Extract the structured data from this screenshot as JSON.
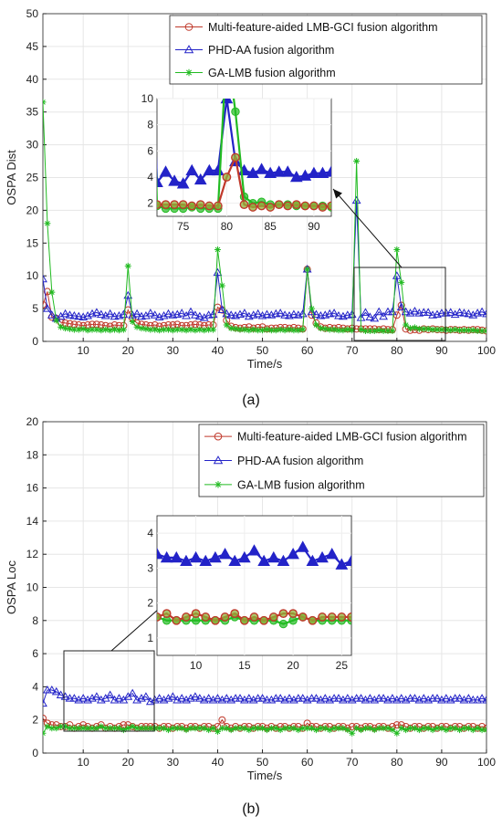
{
  "chart_data": [
    {
      "type": "line",
      "panel_label": "(a)",
      "xlabel": "Time/s",
      "ylabel": "OSPA Dist",
      "xlim": [
        1,
        100
      ],
      "ylim": [
        0,
        50
      ],
      "xticks": [
        10,
        20,
        30,
        40,
        50,
        60,
        70,
        80,
        90,
        100
      ],
      "yticks": [
        0,
        5,
        10,
        15,
        20,
        25,
        30,
        35,
        40,
        45,
        50
      ],
      "grid": true,
      "legend_position": "top-right",
      "x": [
        1,
        2,
        3,
        4,
        5,
        6,
        7,
        8,
        9,
        10,
        11,
        12,
        13,
        14,
        15,
        16,
        17,
        18,
        19,
        20,
        21,
        22,
        23,
        24,
        25,
        26,
        27,
        28,
        29,
        30,
        31,
        32,
        33,
        34,
        35,
        36,
        37,
        38,
        39,
        40,
        41,
        42,
        43,
        44,
        45,
        46,
        47,
        48,
        49,
        50,
        51,
        52,
        53,
        54,
        55,
        56,
        57,
        58,
        59,
        60,
        61,
        62,
        63,
        64,
        65,
        66,
        67,
        68,
        69,
        70,
        71,
        72,
        73,
        74,
        75,
        76,
        77,
        78,
        79,
        80,
        81,
        82,
        83,
        84,
        85,
        86,
        87,
        88,
        89,
        90,
        91,
        92,
        93,
        94,
        95,
        96,
        97,
        98,
        99,
        100
      ],
      "series": [
        {
          "name": "Multi-feature-aided LMB-GCI fusion algorithm",
          "color": "#c0392b",
          "marker": "circle",
          "values": [
            5.6,
            7.6,
            3.7,
            3.5,
            2.9,
            2.8,
            2.7,
            2.6,
            2.5,
            2.4,
            2.5,
            2.6,
            2.6,
            2.5,
            2.4,
            2.3,
            2.5,
            2.4,
            2.4,
            4.8,
            3.5,
            2.8,
            2.6,
            2.5,
            2.4,
            2.5,
            2.3,
            2.4,
            2.5,
            2.5,
            2.6,
            2.4,
            2.4,
            2.5,
            2.6,
            2.5,
            2.4,
            2.5,
            2.5,
            5.2,
            4.8,
            3.2,
            2.3,
            2.1,
            2.0,
            2.1,
            2.2,
            2.0,
            2.1,
            2.2,
            1.9,
            2.0,
            2.0,
            2.1,
            2.1,
            2.0,
            2.1,
            2.0,
            1.9,
            11.0,
            4.0,
            2.8,
            2.2,
            2.0,
            2.1,
            2.0,
            2.1,
            2.0,
            1.9,
            2.0,
            1.9,
            1.9,
            1.9,
            1.9,
            1.9,
            1.8,
            1.9,
            1.8,
            1.8,
            4.0,
            5.5,
            1.9,
            1.7,
            1.8,
            1.7,
            1.9,
            1.8,
            1.9,
            1.8,
            1.8,
            1.7,
            1.8,
            1.8,
            1.7,
            1.8,
            1.7,
            1.8,
            1.8,
            1.7,
            1.6
          ]
        },
        {
          "name": "PHD-AA fusion algorithm",
          "color": "#2323c8",
          "marker": "triangle",
          "values": [
            9.5,
            5.0,
            4.0,
            3.5,
            3.8,
            4.2,
            4.0,
            3.9,
            3.8,
            3.7,
            3.9,
            4.2,
            4.4,
            4.1,
            3.9,
            4.2,
            3.8,
            3.9,
            4.1,
            7.0,
            4.0,
            4.2,
            3.8,
            3.9,
            4.3,
            4.0,
            3.7,
            3.9,
            4.2,
            4.0,
            4.1,
            4.3,
            3.9,
            4.5,
            4.0,
            3.8,
            3.6,
            4.0,
            4.1,
            10.5,
            4.8,
            4.2,
            4.0,
            3.9,
            4.1,
            4.3,
            3.8,
            4.0,
            4.2,
            3.9,
            4.1,
            4.0,
            4.2,
            4.3,
            4.0,
            3.9,
            4.1,
            4.0,
            4.2,
            11.0,
            4.5,
            4.1,
            3.9,
            4.0,
            4.2,
            4.3,
            3.9,
            3.8,
            4.0,
            4.1,
            21.5,
            3.6,
            4.4,
            3.7,
            3.5,
            4.5,
            3.8,
            4.5,
            4.5,
            10.0,
            5.2,
            4.5,
            4.3,
            4.6,
            4.3,
            4.4,
            4.4,
            4.0,
            4.1,
            4.3,
            4.3,
            4.4,
            4.1,
            4.4,
            4.3,
            4.2,
            4.0,
            4.3,
            4.5,
            4.2
          ]
        },
        {
          "name": "GA-LMB fusion algorithm",
          "color": "#22bb22",
          "marker": "star",
          "values": [
            36.5,
            18.0,
            7.5,
            3.2,
            2.2,
            2.0,
            1.9,
            1.8,
            1.8,
            1.9,
            1.7,
            1.8,
            1.8,
            1.7,
            1.8,
            1.7,
            1.8,
            1.7,
            1.8,
            11.5,
            3.0,
            2.2,
            2.0,
            1.9,
            1.8,
            1.8,
            1.7,
            1.8,
            1.8,
            1.7,
            1.8,
            1.8,
            1.7,
            1.8,
            1.7,
            1.8,
            1.7,
            1.8,
            1.8,
            14.0,
            8.5,
            2.5,
            2.0,
            1.9,
            1.8,
            1.8,
            1.7,
            1.8,
            1.7,
            1.7,
            1.8,
            1.7,
            1.7,
            1.8,
            1.7,
            1.8,
            1.7,
            1.7,
            1.8,
            11.0,
            5.0,
            2.5,
            2.0,
            1.9,
            1.8,
            1.8,
            1.7,
            1.7,
            1.8,
            1.7,
            27.5,
            1.8,
            1.6,
            1.6,
            1.6,
            1.7,
            1.6,
            1.6,
            1.6,
            14.0,
            9.0,
            2.5,
            2.0,
            2.1,
            1.9,
            1.9,
            1.9,
            1.8,
            1.8,
            1.8,
            1.8,
            1.7,
            1.8,
            1.7,
            1.7,
            1.7,
            1.7,
            1.6,
            1.6,
            1.6
          ]
        }
      ],
      "inset": {
        "xlim": [
          72,
          92
        ],
        "ylim": [
          1,
          10
        ],
        "xticks": [
          75,
          80,
          85,
          90
        ],
        "yticks": [
          2,
          4,
          6,
          8,
          10
        ]
      }
    },
    {
      "type": "line",
      "panel_label": "(b)",
      "xlabel": "Time/s",
      "ylabel": "OSPA Loc",
      "xlim": [
        1,
        100
      ],
      "ylim": [
        0,
        20
      ],
      "xticks": [
        10,
        20,
        30,
        40,
        50,
        60,
        70,
        80,
        90,
        100
      ],
      "yticks": [
        0,
        2,
        4,
        6,
        8,
        10,
        12,
        14,
        16,
        18,
        20
      ],
      "grid": true,
      "legend_position": "top-right",
      "x": [
        1,
        2,
        3,
        4,
        5,
        6,
        7,
        8,
        9,
        10,
        11,
        12,
        13,
        14,
        15,
        16,
        17,
        18,
        19,
        20,
        21,
        22,
        23,
        24,
        25,
        26,
        27,
        28,
        29,
        30,
        31,
        32,
        33,
        34,
        35,
        36,
        37,
        38,
        39,
        40,
        41,
        42,
        43,
        44,
        45,
        46,
        47,
        48,
        49,
        50,
        51,
        52,
        53,
        54,
        55,
        56,
        57,
        58,
        59,
        60,
        61,
        62,
        63,
        64,
        65,
        66,
        67,
        68,
        69,
        70,
        71,
        72,
        73,
        74,
        75,
        76,
        77,
        78,
        79,
        80,
        81,
        82,
        83,
        84,
        85,
        86,
        87,
        88,
        89,
        90,
        91,
        92,
        93,
        94,
        95,
        96,
        97,
        98,
        99,
        100
      ],
      "series": [
        {
          "name": "Multi-feature-aided LMB-GCI fusion algorithm",
          "color": "#c0392b",
          "marker": "circle",
          "values": [
            2.1,
            1.8,
            1.7,
            1.7,
            1.6,
            1.6,
            1.7,
            1.5,
            1.6,
            1.7,
            1.6,
            1.5,
            1.6,
            1.7,
            1.5,
            1.6,
            1.5,
            1.6,
            1.7,
            1.7,
            1.6,
            1.5,
            1.6,
            1.6,
            1.6,
            1.6,
            1.5,
            1.6,
            1.6,
            1.5,
            1.6,
            1.6,
            1.5,
            1.6,
            1.6,
            1.5,
            1.6,
            1.6,
            1.5,
            1.6,
            2.0,
            1.6,
            1.5,
            1.6,
            1.5,
            1.6,
            1.6,
            1.5,
            1.6,
            1.6,
            1.5,
            1.6,
            1.5,
            1.6,
            1.6,
            1.5,
            1.6,
            1.6,
            1.5,
            1.8,
            1.6,
            1.6,
            1.5,
            1.6,
            1.6,
            1.5,
            1.6,
            1.6,
            1.5,
            1.6,
            1.6,
            1.5,
            1.6,
            1.6,
            1.5,
            1.6,
            1.6,
            1.5,
            1.6,
            1.7,
            1.7,
            1.6,
            1.5,
            1.6,
            1.6,
            1.5,
            1.6,
            1.6,
            1.5,
            1.6,
            1.6,
            1.5,
            1.6,
            1.6,
            1.5,
            1.6,
            1.6,
            1.5,
            1.6,
            1.5
          ]
        },
        {
          "name": "PHD-AA fusion algorithm",
          "color": "#2323c8",
          "marker": "triangle",
          "values": [
            3.0,
            3.8,
            3.8,
            3.7,
            3.5,
            3.4,
            3.3,
            3.3,
            3.2,
            3.3,
            3.2,
            3.3,
            3.4,
            3.2,
            3.3,
            3.5,
            3.2,
            3.3,
            3.2,
            3.4,
            3.6,
            3.2,
            3.3,
            3.4,
            3.1,
            3.2,
            3.3,
            3.2,
            3.3,
            3.4,
            3.2,
            3.3,
            3.2,
            3.3,
            3.4,
            3.3,
            3.2,
            3.3,
            3.2,
            3.3,
            3.2,
            3.3,
            3.2,
            3.3,
            3.3,
            3.2,
            3.3,
            3.2,
            3.3,
            3.3,
            3.2,
            3.2,
            3.3,
            3.3,
            3.2,
            3.3,
            3.2,
            3.3,
            3.3,
            3.2,
            3.3,
            3.3,
            3.2,
            3.3,
            3.2,
            3.3,
            3.3,
            3.2,
            3.3,
            3.2,
            3.3,
            3.3,
            3.2,
            3.3,
            3.2,
            3.3,
            3.3,
            3.2,
            3.3,
            3.2,
            3.3,
            3.2,
            3.3,
            3.3,
            3.2,
            3.3,
            3.2,
            3.3,
            3.3,
            3.2,
            3.3,
            3.2,
            3.3,
            3.3,
            3.2,
            3.3,
            3.2,
            3.2,
            3.3,
            3.2
          ]
        },
        {
          "name": "GA-LMB fusion algorithm",
          "color": "#22bb22",
          "marker": "star",
          "values": [
            1.2,
            1.6,
            1.5,
            1.5,
            1.6,
            1.6,
            1.5,
            1.5,
            1.5,
            1.5,
            1.5,
            1.5,
            1.5,
            1.6,
            1.5,
            1.5,
            1.5,
            1.5,
            1.4,
            1.5,
            1.6,
            1.5,
            1.5,
            1.5,
            1.5,
            1.5,
            1.5,
            1.5,
            1.4,
            1.5,
            1.5,
            1.5,
            1.4,
            1.5,
            1.5,
            1.5,
            1.5,
            1.4,
            1.5,
            1.3,
            1.5,
            1.5,
            1.4,
            1.5,
            1.5,
            1.5,
            1.4,
            1.5,
            1.5,
            1.5,
            1.4,
            1.5,
            1.5,
            1.4,
            1.5,
            1.5,
            1.5,
            1.4,
            1.5,
            1.5,
            1.5,
            1.4,
            1.5,
            1.5,
            1.4,
            1.5,
            1.5,
            1.5,
            1.4,
            1.2,
            1.5,
            1.4,
            1.5,
            1.5,
            1.4,
            1.5,
            1.5,
            1.5,
            1.4,
            1.2,
            1.5,
            1.4,
            1.5,
            1.5,
            1.4,
            1.5,
            1.5,
            1.4,
            1.5,
            1.5,
            1.4,
            1.5,
            1.5,
            1.4,
            1.5,
            1.5,
            1.4,
            1.5,
            1.4,
            1.4
          ]
        }
      ],
      "inset": {
        "xlim": [
          6,
          26
        ],
        "ylim": [
          0.5,
          4.5
        ],
        "xticks": [
          10,
          15,
          20,
          25
        ],
        "yticks": [
          1,
          2,
          3,
          4
        ]
      }
    }
  ]
}
